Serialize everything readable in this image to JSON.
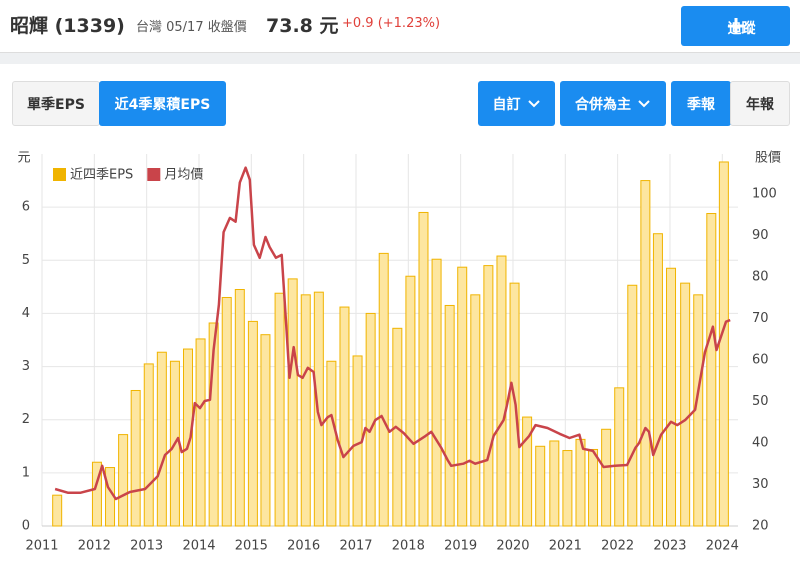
{
  "header": {
    "title": "昭輝 (1339)",
    "market": "台灣 05/17 收盤價",
    "price": "73.8 元",
    "change": "+0.9 (+1.23%)",
    "button": "追蹤"
  },
  "tabs": [
    "單季EPS",
    "近4季累積EPS"
  ],
  "filters": [
    "自訂",
    "合併為主",
    "季報",
    "年報"
  ],
  "chart_data": {
    "type": "bar+line",
    "y_label": "元",
    "y2_label": "股價",
    "xlim": [
      2011,
      2024.3
    ],
    "xticks": [
      2011,
      2012,
      2013,
      2014,
      2015,
      2016,
      2017,
      2018,
      2019,
      2020,
      2021,
      2022,
      2023,
      2024
    ],
    "ylim": [
      0,
      7
    ],
    "yticks": [
      0,
      1,
      2,
      3,
      4,
      5,
      6
    ],
    "y2lim": [
      20,
      109.6
    ],
    "y2ticks": [
      20,
      30,
      40,
      50,
      60,
      70,
      80,
      90,
      100
    ],
    "grid": true,
    "series": [
      {
        "name": "近四季EPS",
        "type": "bar",
        "color": "#f0b400",
        "x": [
          2011.29,
          2012.05,
          2012.3,
          2012.55,
          2012.79,
          2013.04,
          2013.29,
          2013.54,
          2013.79,
          2014.03,
          2014.28,
          2014.53,
          2014.78,
          2015.03,
          2015.27,
          2015.54,
          2015.79,
          2016.04,
          2016.29,
          2016.53,
          2016.78,
          2017.03,
          2017.28,
          2017.53,
          2017.79,
          2018.04,
          2018.29,
          2018.54,
          2018.79,
          2019.03,
          2019.28,
          2019.53,
          2019.78,
          2020.03,
          2020.27,
          2020.52,
          2020.79,
          2021.04,
          2021.29,
          2021.53,
          2021.78,
          2022.03,
          2022.28,
          2022.53,
          2022.77,
          2023.02,
          2023.29,
          2023.54,
          2023.79,
          2024.03
        ],
        "values": [
          0.58,
          1.2,
          1.1,
          1.72,
          2.55,
          3.05,
          3.27,
          3.1,
          3.33,
          3.52,
          3.82,
          4.3,
          4.45,
          3.85,
          3.6,
          4.38,
          4.65,
          4.35,
          4.4,
          3.1,
          4.12,
          3.2,
          4.0,
          5.13,
          3.72,
          4.7,
          5.9,
          5.02,
          4.15,
          4.87,
          4.35,
          4.9,
          5.08,
          4.57,
          2.05,
          1.5,
          1.6,
          1.42,
          1.63,
          1.44,
          1.82,
          2.6,
          4.53,
          6.5,
          5.5,
          4.85,
          4.57,
          4.35,
          5.88,
          6.85
        ]
      },
      {
        "name": "月均價",
        "type": "line",
        "axis": "y2",
        "color": "#c9444a",
        "x": [
          2011.25,
          2011.5,
          2011.73,
          2012.01,
          2012.15,
          2012.26,
          2012.41,
          2012.68,
          2012.97,
          2013.21,
          2013.35,
          2013.48,
          2013.6,
          2013.67,
          2013.77,
          2013.84,
          2013.92,
          2014.02,
          2014.11,
          2014.21,
          2014.28,
          2014.38,
          2014.47,
          2014.59,
          2014.7,
          2014.78,
          2014.89,
          2014.97,
          2015.05,
          2015.16,
          2015.27,
          2015.35,
          2015.47,
          2015.58,
          2015.66,
          2015.73,
          2015.81,
          2015.89,
          2015.98,
          2016.08,
          2016.19,
          2016.27,
          2016.34,
          2016.46,
          2016.53,
          2016.65,
          2016.76,
          2016.95,
          2017.11,
          2017.18,
          2017.26,
          2017.37,
          2017.49,
          2017.64,
          2017.76,
          2017.91,
          2018.1,
          2018.33,
          2018.44,
          2018.63,
          2018.75,
          2018.82,
          2019.05,
          2019.17,
          2019.28,
          2019.51,
          2019.63,
          2019.82,
          2019.89,
          2019.97,
          2020.05,
          2020.12,
          2020.31,
          2020.43,
          2020.66,
          2020.89,
          2021.08,
          2021.27,
          2021.34,
          2021.53,
          2021.73,
          2021.95,
          2022.18,
          2022.34,
          2022.41,
          2022.53,
          2022.6,
          2022.68,
          2022.83,
          2023.02,
          2023.14,
          2023.29,
          2023.48,
          2023.56,
          2023.67,
          2023.82,
          2023.89,
          2024.07,
          2024.15
        ],
        "values": [
          28.9,
          28,
          28,
          28.9,
          34.5,
          29.4,
          26.5,
          28.2,
          28.9,
          32,
          37.1,
          38.6,
          41.2,
          37.8,
          38.6,
          41.4,
          49.6,
          48.4,
          50.1,
          50.4,
          62.4,
          73.3,
          90.8,
          94.2,
          93.3,
          102.7,
          106.3,
          103.4,
          87.7,
          84.6,
          89.6,
          87.2,
          84.6,
          85.3,
          69.6,
          55.7,
          63.1,
          56.4,
          55.7,
          58.1,
          57.1,
          47.5,
          44.3,
          46.2,
          46.7,
          40.7,
          36.6,
          39.3,
          40.2,
          43.6,
          42.7,
          45.5,
          46.5,
          42.7,
          43.9,
          42.4,
          39.8,
          41.7,
          42.7,
          38.8,
          35.9,
          34.5,
          35,
          35.7,
          35,
          35.9,
          41.7,
          45.5,
          49.4,
          54.5,
          49.2,
          39,
          41.7,
          44.3,
          43.6,
          42.2,
          41.2,
          42,
          38.6,
          38.1,
          34.2,
          34.5,
          34.7,
          38.8,
          40,
          43.6,
          42.7,
          37.1,
          42,
          45.1,
          44.3,
          45.5,
          48,
          54,
          61.9,
          68,
          62.4,
          69.2,
          69.6
        ]
      }
    ]
  }
}
